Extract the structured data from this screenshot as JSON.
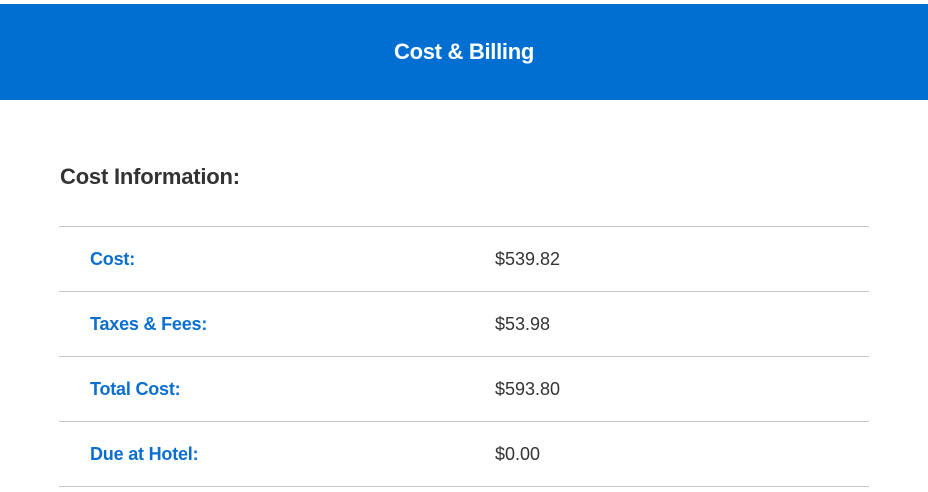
{
  "header": {
    "title": "Cost & Billing",
    "background_color": "#006fd1"
  },
  "section": {
    "title": "Cost Information:"
  },
  "rows": [
    {
      "label": "Cost:",
      "value": "$539.82"
    },
    {
      "label": "Taxes & Fees:",
      "value": "$53.98"
    },
    {
      "label": "Total Cost:",
      "value": "$593.80"
    },
    {
      "label": "Due at Hotel:",
      "value": "$0.00"
    }
  ]
}
